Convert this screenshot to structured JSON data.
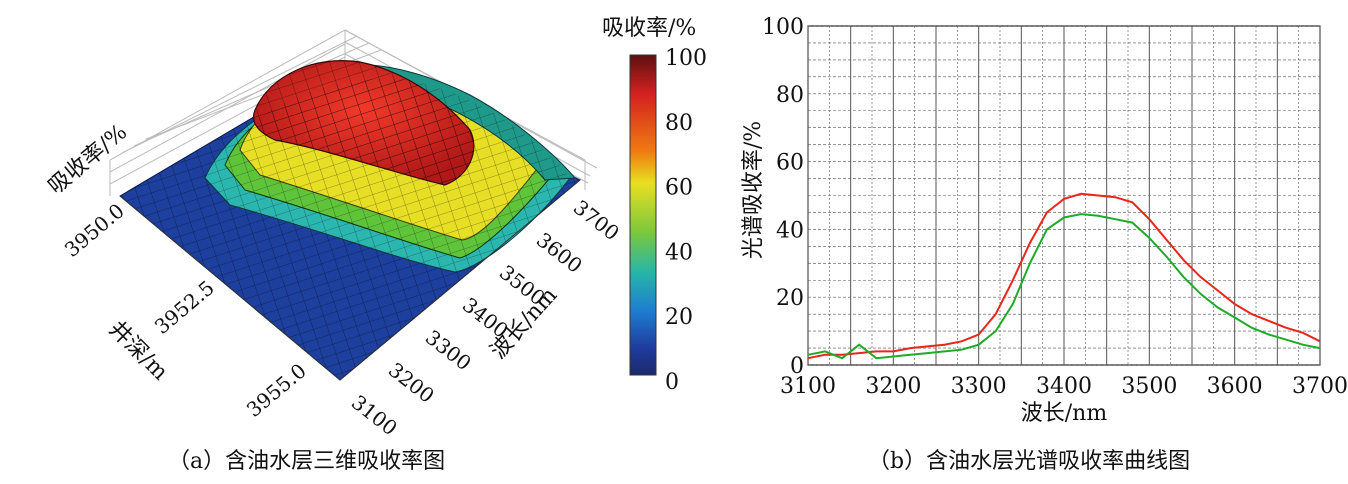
{
  "panel_a": {
    "caption": "（a）含油水层三维吸收率图",
    "z_label": "吸收率/%",
    "depth_label": "井深/m",
    "wave_label": "波长/nm",
    "depth_ticks": [
      "3950.0",
      "3952.5",
      "3955.0"
    ],
    "wave_ticks": [
      "3100",
      "3200",
      "3300",
      "3400",
      "3500",
      "3600",
      "3700"
    ],
    "colorbar": {
      "title": "吸收率/%",
      "ticks": [
        "100",
        "80",
        "60",
        "40",
        "20",
        "0"
      ],
      "colors": [
        "#5c1010",
        "#d42020",
        "#f07a10",
        "#e8e020",
        "#7ec83a",
        "#26b6a8",
        "#1e7dd0",
        "#1e3a9c",
        "#1a2a6a"
      ]
    }
  },
  "panel_b": {
    "caption": "（b）含油水层光谱吸收率曲线图",
    "colors": {
      "series_1": "#e8261b",
      "series_2": "#1faa2a",
      "grid": "#555555"
    }
  },
  "chart_data": [
    {
      "type": "heatmap",
      "xlabel": "波长/nm",
      "ylabel": "井深/m",
      "zlabel": "吸收率/%",
      "x_ticks": [
        3100,
        3200,
        3300,
        3400,
        3500,
        3600,
        3700
      ],
      "y_ticks": [
        3950.0,
        3952.5,
        3955.0
      ],
      "zlim": [
        0,
        100
      ]
    },
    {
      "type": "line",
      "xlabel": "波长/nm",
      "ylabel": "光谱吸收率/%",
      "xlim": [
        3100,
        3700
      ],
      "ylim": [
        0,
        100
      ],
      "x_ticks": [
        3100,
        3200,
        3300,
        3400,
        3500,
        3600,
        3700
      ],
      "y_ticks": [
        0,
        20,
        40,
        60,
        80,
        100
      ],
      "grid": true,
      "x": [
        3100,
        3120,
        3140,
        3160,
        3180,
        3200,
        3220,
        3240,
        3260,
        3280,
        3300,
        3320,
        3340,
        3360,
        3380,
        3400,
        3420,
        3440,
        3460,
        3480,
        3500,
        3520,
        3540,
        3560,
        3580,
        3600,
        3620,
        3640,
        3660,
        3680,
        3700
      ],
      "series": [
        {
          "values": [
            2,
            3,
            3,
            3.5,
            4,
            4,
            5,
            5.5,
            6,
            7,
            9,
            15,
            25,
            36,
            45,
            49,
            50.5,
            50,
            49.5,
            48,
            43,
            37,
            31,
            26,
            22,
            18,
            15,
            13,
            11,
            9.5,
            7
          ]
        },
        {
          "values": [
            3,
            4,
            2,
            6,
            2,
            2.5,
            3,
            3.5,
            4,
            4.5,
            6,
            10,
            18,
            30,
            40,
            43.5,
            44.5,
            44,
            43,
            42,
            37.5,
            32,
            26,
            21,
            17,
            14,
            11,
            9,
            7.5,
            6,
            5
          ]
        }
      ]
    }
  ]
}
